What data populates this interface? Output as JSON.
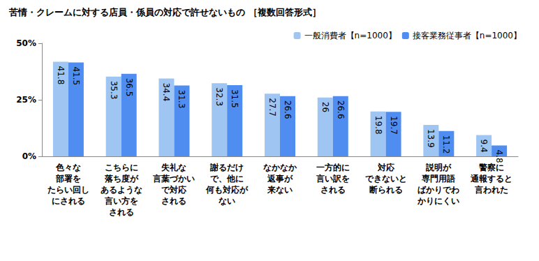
{
  "chart_data": {
    "type": "bar",
    "title": "苦情・クレームに対する店員・係員の対応で許せないもの ［複数回答形式］",
    "categories": [
      "色々な\n部署を\nたらい回し\nにされる",
      "こちらに\n落ち度が\nあるような\n言い方を\nされる",
      "失礼な\n言葉づかい\nで対応\nされる",
      "謝るだけ\nで、他に\n何も対応が\nない",
      "なかなか\n返事が\n来ない",
      "一方的に\n言い訳を\nされる",
      "対応\nできないと\n断られる",
      "説明が\n専門用語\nばかりでわ\nかりにくい",
      "警察に\n通報すると\n言われた"
    ],
    "series": [
      {
        "name": "一般消費者【n=1000】",
        "color": "#9fc5f2",
        "values": [
          41.8,
          35.3,
          34.4,
          32.3,
          27.7,
          26.0,
          19.8,
          13.9,
          9.4
        ]
      },
      {
        "name": "接客業務従事者【n=1000】",
        "color": "#4f8ef0",
        "values": [
          41.5,
          36.5,
          31.3,
          31.5,
          26.6,
          26.6,
          19.7,
          11.2,
          4.8
        ]
      }
    ],
    "ylim": [
      0,
      50
    ],
    "yticks": [
      {
        "value": 0,
        "label": "0%"
      },
      {
        "value": 25,
        "label": "25%"
      },
      {
        "value": 50,
        "label": "50%"
      }
    ],
    "grid": false,
    "legend": "upper right",
    "data_labels": true
  }
}
